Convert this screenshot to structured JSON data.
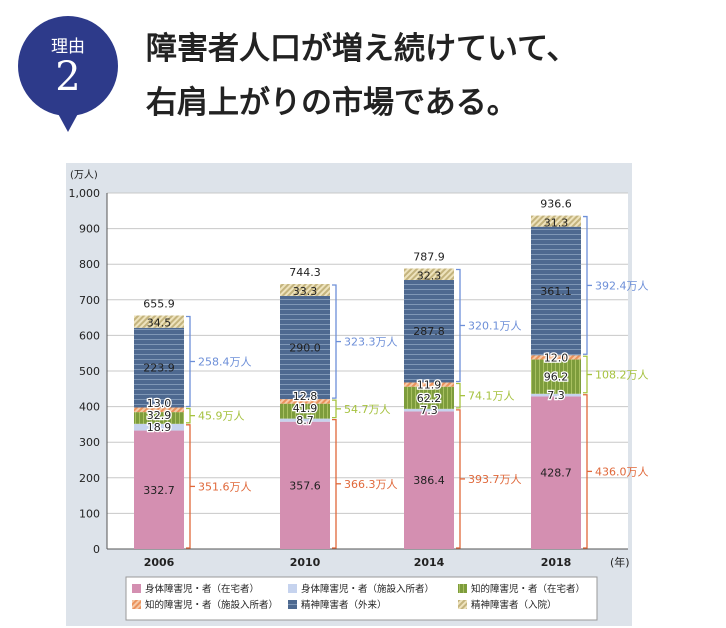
{
  "badge": {
    "label": "理由",
    "number": "2"
  },
  "title": {
    "line1": "障害者人口が増え続けていて、",
    "line2": "右肩上がりの市場である。"
  },
  "chart_data": {
    "type": "bar",
    "stacked": true,
    "ylabel": "(万人)",
    "xlabel": "(年)",
    "ylim": [
      0,
      1000
    ],
    "yticks": [
      "0",
      "100",
      "200",
      "300",
      "400",
      "500",
      "600",
      "700",
      "800",
      "900",
      "1,000"
    ],
    "grid": true,
    "categories": [
      "2006",
      "2010",
      "2014",
      "2018"
    ],
    "series": [
      {
        "name": "身体障害児・者（在宅者）",
        "color": "#d48fb1",
        "values": [
          332.7,
          357.6,
          386.4,
          428.7
        ]
      },
      {
        "name": "身体障害児・者（施設入所者）",
        "color": "#c6d3ee",
        "values": [
          18.9,
          8.7,
          7.3,
          7.3
        ]
      },
      {
        "name": "知的障害児・者（在宅者）",
        "color": "#7d9c3c",
        "values": [
          32.9,
          41.9,
          62.2,
          96.2
        ]
      },
      {
        "name": "知的障害児・者（施設入所者）",
        "color": "#ea925c",
        "values": [
          13.0,
          12.8,
          11.9,
          12.0
        ]
      },
      {
        "name": "精神障害者（外来）",
        "color": "#4e6990",
        "values": [
          223.9,
          290.0,
          287.8,
          361.1
        ]
      },
      {
        "name": "精神障害者（入院）",
        "color": "#d8cb9c",
        "values": [
          34.5,
          33.3,
          32.3,
          31.3
        ]
      }
    ],
    "totals": [
      "655.9",
      "744.3",
      "787.9",
      "936.6"
    ],
    "bracket_groups": [
      {
        "group": "physical",
        "color": "#e0683a",
        "labels": [
          "351.6万人",
          "366.3万人",
          "393.7万人",
          "436.0万人"
        ]
      },
      {
        "group": "intellectual",
        "color": "#a6c23f",
        "labels": [
          "45.9万人",
          "54.7万人",
          "74.1万人",
          "108.2万人"
        ]
      },
      {
        "group": "mental",
        "color": "#6d8fd8",
        "labels": [
          "258.4万人",
          "323.3万人",
          "320.1万人",
          "392.4万人"
        ]
      }
    ],
    "legend_placement": "bottom"
  }
}
